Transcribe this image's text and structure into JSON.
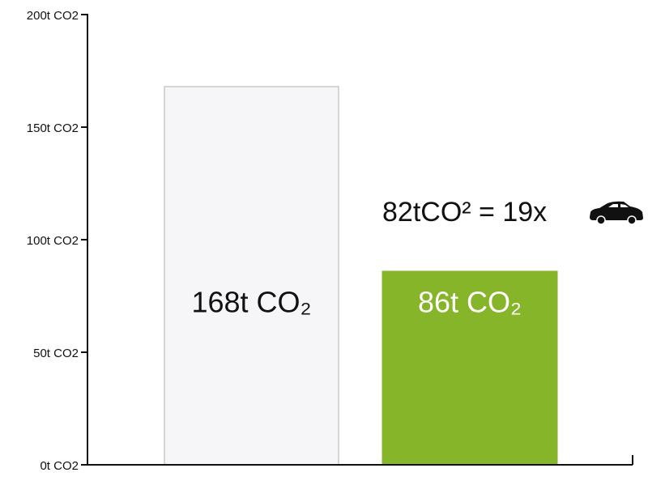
{
  "chart_data": {
    "type": "bar",
    "categories": [
      null,
      null
    ],
    "values": [
      168,
      86
    ],
    "value_labels": [
      "168t CO₂",
      "86t CO₂"
    ],
    "colors": [
      "#f6f6f8",
      "#86b52a"
    ],
    "border_colors": [
      "#b0b0b0",
      "#86b52a"
    ],
    "value_label_colors": [
      "#111111",
      "#ffffff"
    ],
    "ylim": [
      0,
      200
    ],
    "yticks": [
      {
        "value": 0,
        "label": "0t CO2"
      },
      {
        "value": 50,
        "label": "50t CO2"
      },
      {
        "value": 100,
        "label": "100t CO2"
      },
      {
        "value": 150,
        "label": "150t CO2"
      },
      {
        "value": 200,
        "label": "200t CO2"
      }
    ],
    "grid": false,
    "annotation": "82tCO² = 19x"
  }
}
